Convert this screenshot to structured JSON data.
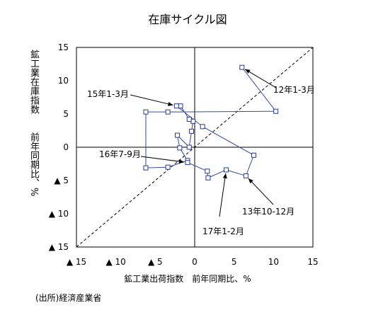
{
  "chart_data": {
    "type": "scatter",
    "title": "在庫サイクル図",
    "xlabel": "鉱工業出荷指数　前年同期比、%",
    "ylabel": "鉱工業在庫指数　　前年同期比、%",
    "xlim": [
      -15,
      15
    ],
    "ylim": [
      -15,
      15
    ],
    "x_ticks": [
      "▲ 15",
      "▲ 10",
      "▲ 5",
      "0",
      "5",
      "10",
      "15"
    ],
    "y_ticks": [
      "15",
      "10",
      "5",
      "0",
      "▲ 5",
      "▲ 10",
      "▲ 15"
    ],
    "diagonal_reference_line": true,
    "series": [
      {
        "points": [
          {
            "x": 6.0,
            "y": 12.0
          },
          {
            "x": 10.3,
            "y": 5.4
          },
          {
            "x": -3.4,
            "y": 5.3
          },
          {
            "x": -6.2,
            "y": 5.3
          },
          {
            "x": -6.2,
            "y": -3.1
          },
          {
            "x": -3.4,
            "y": -3.0
          },
          {
            "x": -0.9,
            "y": -2.0
          },
          {
            "x": -1.9,
            "y": -0.1
          },
          {
            "x": -2.2,
            "y": 1.8
          },
          {
            "x": -0.7,
            "y": 0.0
          },
          {
            "x": -0.4,
            "y": 2.4
          },
          {
            "x": -0.2,
            "y": 3.9
          },
          {
            "x": -0.7,
            "y": 4.2
          },
          {
            "x": -1.8,
            "y": 6.2
          },
          {
            "x": -2.3,
            "y": 6.2
          },
          {
            "x": 1.0,
            "y": 3.1
          },
          {
            "x": 7.5,
            "y": -1.2
          },
          {
            "x": 6.5,
            "y": -4.3
          },
          {
            "x": 4.0,
            "y": -3.4
          },
          {
            "x": 1.7,
            "y": -4.6
          },
          {
            "x": 1.6,
            "y": -3.6
          },
          {
            "x": -0.9,
            "y": -2.3
          }
        ]
      }
    ],
    "annotations": [
      {
        "text": "12年1-3月",
        "target": [
          6.0,
          12.0
        ],
        "label_at": [
          10.0,
          8.5
        ]
      },
      {
        "text": "15年1-3月",
        "target": [
          -2.3,
          6.2
        ],
        "label_at": [
          -12.5,
          8.0
        ]
      },
      {
        "text": "16年7-9月",
        "target": [
          -0.9,
          -2.3
        ],
        "label_at": [
          -12.0,
          -1.0
        ]
      },
      {
        "text": "13年10-12月",
        "target": [
          6.5,
          -4.3
        ],
        "label_at": [
          9.0,
          -9.5
        ]
      },
      {
        "text": "17年1-2月",
        "target": [
          4.0,
          -3.4
        ],
        "label_at": [
          3.5,
          -12.5
        ]
      }
    ]
  },
  "source_note": "(出所)経済産業省"
}
